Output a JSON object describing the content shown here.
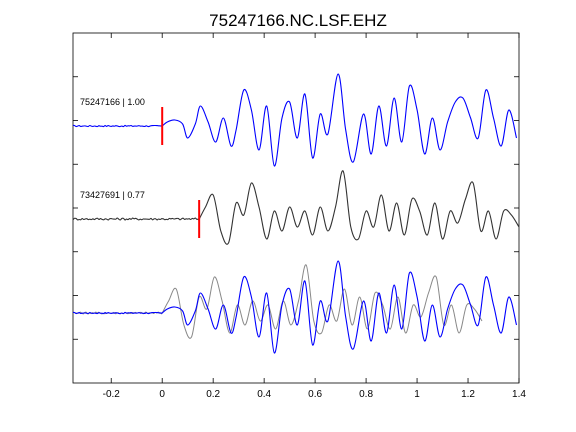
{
  "chart_data": {
    "type": "line",
    "title": "75247166.NC.LSF.EHZ",
    "xlabel": "",
    "ylabel": "",
    "xlim": [
      -0.35,
      1.4
    ],
    "xticks": [
      -0.2,
      0,
      0.2,
      0.4,
      0.6,
      0.8,
      1,
      1.2,
      1.4
    ],
    "xtick_labels": [
      "-0.2",
      "0",
      "0.2",
      "0.4",
      "0.6",
      "0.8",
      "1",
      "1.2",
      "1.4"
    ],
    "y_ticks_unlabeled": 7,
    "grid": false,
    "traces": [
      {
        "label": "75247166 | 1.00",
        "color": "#0000ff",
        "pick_time": 0.0,
        "pick_color": "#ff0000",
        "onset": 0.0,
        "x": [
          0.02,
          0.05,
          0.08,
          0.1,
          0.13,
          0.15,
          0.18,
          0.21,
          0.24,
          0.27,
          0.29,
          0.32,
          0.35,
          0.38,
          0.41,
          0.44,
          0.47,
          0.5,
          0.53,
          0.56,
          0.59,
          0.62,
          0.65,
          0.69,
          0.72,
          0.75,
          0.79,
          0.82,
          0.85,
          0.88,
          0.91,
          0.94,
          0.97,
          1.0,
          1.03,
          1.06,
          1.09,
          1.12,
          1.15,
          1.18,
          1.21,
          1.24,
          1.27,
          1.3,
          1.33,
          1.36,
          1.39
        ],
        "y": [
          0.1,
          0.15,
          0.05,
          -0.3,
          0.05,
          0.5,
          0.1,
          -0.4,
          0.2,
          -0.5,
          -0.1,
          0.9,
          0.4,
          -0.6,
          0.5,
          -1.0,
          0.2,
          0.6,
          -0.3,
          0.8,
          -0.8,
          0.3,
          -0.2,
          1.3,
          -0.1,
          -0.9,
          0.3,
          -0.7,
          0.5,
          -0.5,
          0.7,
          -0.4,
          1.0,
          0.4,
          -0.7,
          0.2,
          -0.6,
          0.1,
          0.6,
          0.7,
          0.2,
          -0.3,
          0.9,
          0.2,
          -0.5,
          0.4,
          -0.3
        ]
      },
      {
        "label": "73427691 | 0.77",
        "color": "#333333",
        "pick_time": 0.145,
        "pick_color": "#ff0000",
        "onset": 0.145,
        "x": [
          0.17,
          0.2,
          0.23,
          0.26,
          0.29,
          0.32,
          0.35,
          0.38,
          0.41,
          0.44,
          0.47,
          0.5,
          0.53,
          0.56,
          0.59,
          0.62,
          0.65,
          0.68,
          0.71,
          0.74,
          0.77,
          0.8,
          0.83,
          0.86,
          0.89,
          0.92,
          0.95,
          0.98,
          1.01,
          1.04,
          1.07,
          1.1,
          1.13,
          1.16,
          1.19,
          1.22,
          1.25,
          1.28,
          1.31,
          1.34,
          1.37,
          1.4
        ],
        "y": [
          0.3,
          0.6,
          -0.3,
          -0.6,
          0.4,
          0.1,
          0.9,
          0.3,
          -0.5,
          0.2,
          -0.3,
          0.3,
          -0.2,
          0.2,
          -0.4,
          0.3,
          -0.3,
          0.3,
          1.2,
          -0.2,
          -0.5,
          0.2,
          -0.2,
          0.6,
          -0.3,
          0.4,
          -0.4,
          0.5,
          0.2,
          -0.4,
          0.4,
          -0.5,
          0.2,
          -0.1,
          0.5,
          0.9,
          -0.3,
          0.2,
          -0.5,
          0.2,
          0.1,
          -0.2
        ]
      }
    ]
  }
}
